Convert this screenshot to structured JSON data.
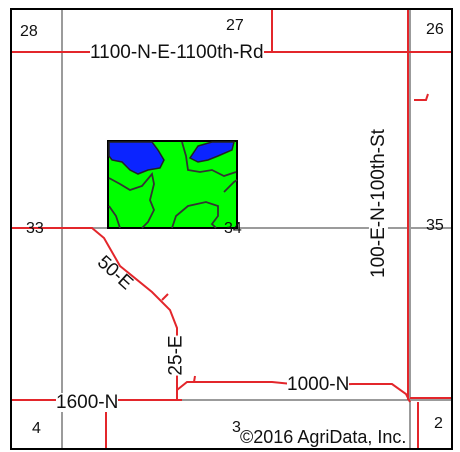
{
  "sections": {
    "s28": "28",
    "s27": "27",
    "s26": "26",
    "s33": "33",
    "s34": "34",
    "s35": "35",
    "s4": "4",
    "s3": "3",
    "s2": "2"
  },
  "roads": {
    "north": "1100-N-E-1100th-Rd",
    "east": "100-E-N-100th-St",
    "diag": "50-E",
    "mid": "25-E",
    "south_west": "1600-N",
    "south_east": "1000-N",
    "east_lower": "100-E"
  },
  "copyright": "©2016 AgriData, Inc.",
  "colors": {
    "road": "#e3262b",
    "section_line": "#999999",
    "field_green": "#00ff00",
    "water_blue": "#0b24ff",
    "contour": "#333333"
  }
}
